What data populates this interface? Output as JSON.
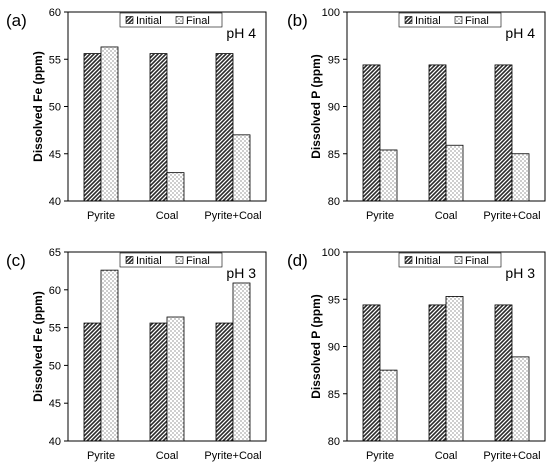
{
  "legend": {
    "initial": "Initial",
    "final": "Final"
  },
  "colors": {
    "initial": "#2b2b2b",
    "final_dot": "#555555",
    "bar_stroke": "#000000",
    "axis": "#000000"
  },
  "chart_data": [
    {
      "type": "bar",
      "panel_label": "(a)",
      "annotation": "pH 4",
      "ylabel": "Dissolved Fe (ppm)",
      "ylim": [
        40,
        60
      ],
      "yticks": [
        40,
        45,
        50,
        55,
        60
      ],
      "categories": [
        "Pyrite",
        "Coal",
        "Pyrite+Coal"
      ],
      "series": [
        {
          "name": "Initial",
          "values": [
            55.6,
            55.6,
            55.6
          ]
        },
        {
          "name": "Final",
          "values": [
            56.3,
            43.0,
            47.0
          ]
        }
      ],
      "legend_position": "top-center"
    },
    {
      "type": "bar",
      "panel_label": "(b)",
      "annotation": "pH 4",
      "ylabel": "Dissolved P (ppm)",
      "ylim": [
        80,
        100
      ],
      "yticks": [
        80,
        85,
        90,
        95,
        100
      ],
      "categories": [
        "Pyrite",
        "Coal",
        "Pyrite+Coal"
      ],
      "series": [
        {
          "name": "Initial",
          "values": [
            94.4,
            94.4,
            94.4
          ]
        },
        {
          "name": "Final",
          "values": [
            85.4,
            85.9,
            85.0
          ]
        }
      ],
      "legend_position": "top-center"
    },
    {
      "type": "bar",
      "panel_label": "(c)",
      "annotation": "pH 3",
      "ylabel": "Dissolved Fe (ppm)",
      "ylim": [
        40,
        65
      ],
      "yticks": [
        40,
        45,
        50,
        55,
        60,
        65
      ],
      "categories": [
        "Pyrite",
        "Coal",
        "Pyrite+Coal"
      ],
      "series": [
        {
          "name": "Initial",
          "values": [
            55.6,
            55.6,
            55.6
          ]
        },
        {
          "name": "Final",
          "values": [
            62.6,
            56.4,
            60.9
          ]
        }
      ],
      "legend_position": "top-center"
    },
    {
      "type": "bar",
      "panel_label": "(d)",
      "annotation": "pH 3",
      "ylabel": "Dissolved P (ppm)",
      "ylim": [
        80,
        100
      ],
      "yticks": [
        80,
        85,
        90,
        95,
        100
      ],
      "categories": [
        "Pyrite",
        "Coal",
        "Pyrite+Coal"
      ],
      "series": [
        {
          "name": "Initial",
          "values": [
            94.4,
            94.4,
            94.4
          ]
        },
        {
          "name": "Final",
          "values": [
            87.5,
            95.3,
            88.9
          ]
        }
      ],
      "legend_position": "top-center"
    }
  ]
}
